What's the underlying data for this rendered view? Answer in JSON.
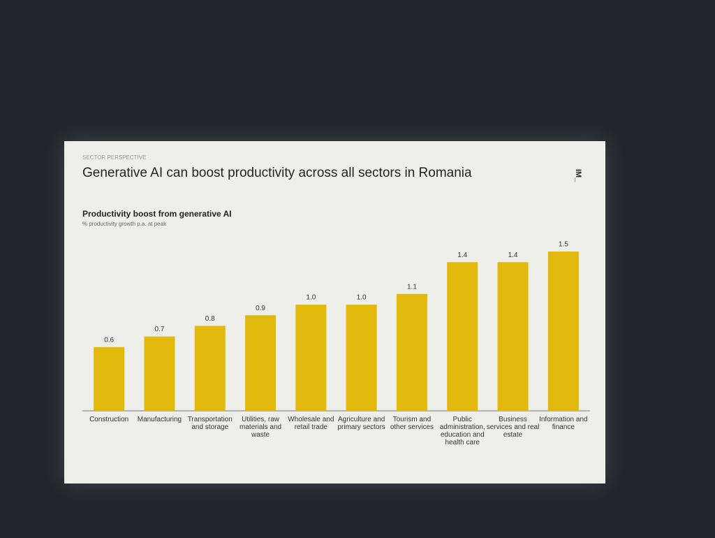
{
  "chart_data": {
    "type": "bar",
    "kicker": "SECTOR PERSPECTIVE",
    "title": "Generative AI can boost productivity across all sectors in Romania",
    "logo": "IM_",
    "subtitle": "Productivity boost from generative AI",
    "note": "% productivity growth p.a. at peak",
    "categories": [
      "Construction",
      "Manufacturing",
      "Transportation and storage",
      "Utilities, raw materials and waste",
      "Wholesale and retail trade",
      "Agriculture and primary sectors",
      "Tourism and other services",
      "Public administration, education and health care",
      "Business services and real estate",
      "Information and finance"
    ],
    "values": [
      0.6,
      0.7,
      0.8,
      0.9,
      1.0,
      1.0,
      1.1,
      1.4,
      1.4,
      1.5
    ],
    "value_labels": [
      "0.6",
      "0.7",
      "0.8",
      "0.9",
      "1.0",
      "1.0",
      "1.1",
      "1.4",
      "1.4",
      "1.5"
    ],
    "color": "#e0b90c"
  }
}
